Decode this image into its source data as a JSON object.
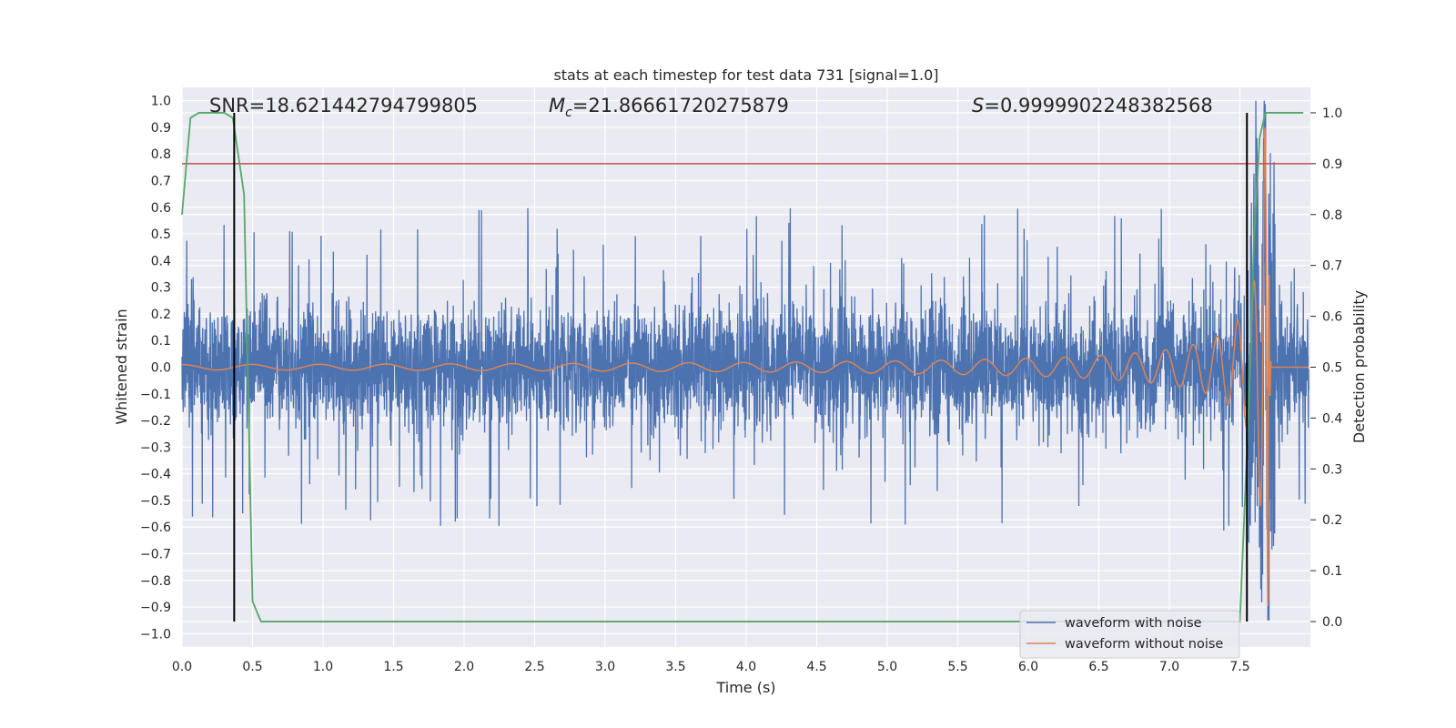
{
  "chart_data": {
    "type": "line",
    "title": "stats at each timestep for test data 731 [signal=1.0]",
    "xlabel": "Time (s)",
    "ylabel": "Whitened strain",
    "y2label": "Detection probability",
    "xlim": [
      0.0,
      8.0
    ],
    "ylim": [
      -1.05,
      1.05
    ],
    "y2lim": [
      -0.05,
      1.05
    ],
    "xticks": [
      "0.0",
      "0.5",
      "1.0",
      "1.5",
      "2.0",
      "2.5",
      "3.0",
      "3.5",
      "4.0",
      "4.5",
      "5.0",
      "5.5",
      "6.0",
      "6.5",
      "7.0",
      "7.5"
    ],
    "yticks": [
      "1.0",
      "0.9",
      "0.8",
      "0.7",
      "0.6",
      "0.5",
      "0.4",
      "0.3",
      "0.2",
      "0.1",
      "0.0",
      "-0.1",
      "-0.2",
      "-0.3",
      "-0.4",
      "-0.5",
      "-0.6",
      "-0.7",
      "-0.8",
      "-0.9",
      "-1.0"
    ],
    "y2ticks": [
      "1.0",
      "0.9",
      "0.8",
      "0.7",
      "0.6",
      "0.5",
      "0.4",
      "0.3",
      "0.2",
      "0.1",
      "0.0"
    ],
    "grid": true,
    "annotations": {
      "snr": "SNR=18.621442794799805",
      "mc_symbol": "M",
      "mc_sub": "c",
      "mc_value": "=21.86661720275879",
      "s_symbol": "S",
      "s_value": "=0.9999902248382568"
    },
    "series": [
      {
        "name": "waveform with noise",
        "color": "#4c72b0",
        "description": "whitened noisy strain, roughly within [-0.35, 0.35] with spikes up to about ±0.6; merger burst near 7.6-7.7 s reaching ~1.0"
      },
      {
        "name": "waveform without noise",
        "color": "#dd8452",
        "chirp": {
          "start": 0.0,
          "end": 7.7,
          "f_start": 2.0,
          "amp_start": 0.01,
          "amp_end": 0.9
        }
      },
      {
        "name": "detection probability",
        "axis": "right",
        "color": "#55a868",
        "x": [
          0.0,
          0.06,
          0.12,
          0.2,
          0.3,
          0.36,
          0.44,
          0.5,
          0.56,
          1.0,
          2.0,
          3.0,
          4.0,
          5.0,
          6.0,
          7.0,
          7.5,
          7.56,
          7.6,
          7.64,
          7.68,
          7.95
        ],
        "y": [
          0.8,
          0.99,
          1.0,
          1.0,
          1.0,
          0.99,
          0.84,
          0.04,
          0.0,
          0.0,
          0.0,
          0.0,
          0.0,
          0.0,
          0.0,
          0.0,
          0.0,
          0.4,
          0.75,
          0.95,
          1.0,
          1.0
        ]
      }
    ],
    "threshold_line": {
      "axis": "right",
      "y": 0.9,
      "color": "#c44e52"
    },
    "detection_markers_x": [
      0.37,
      7.55
    ],
    "legend": {
      "location": "lower-right",
      "entries": [
        "waveform with noise",
        "waveform without noise"
      ]
    }
  }
}
